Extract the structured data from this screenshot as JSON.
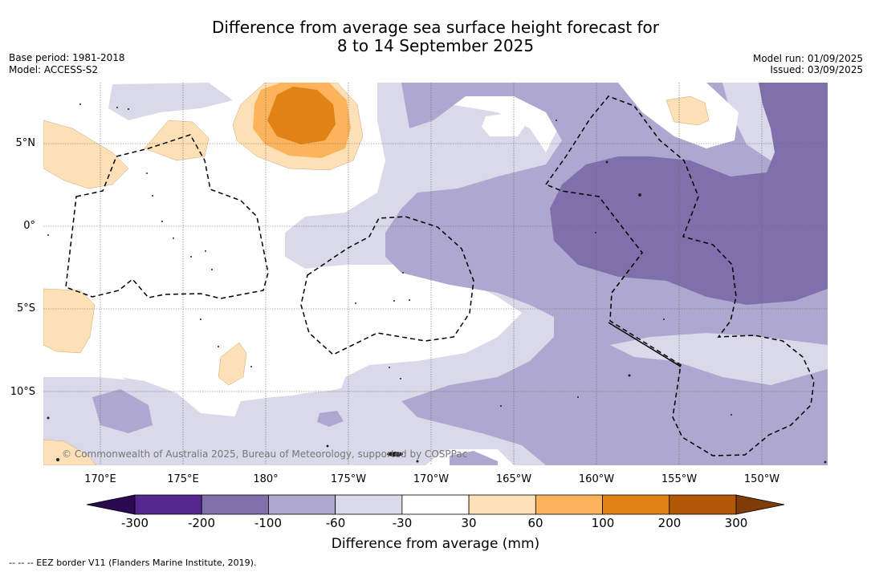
{
  "title": {
    "line1": "Difference from average sea surface height forecast for",
    "line2": "8 to 14 September 2025"
  },
  "meta_left": {
    "base_period": "Base period: 1981-2018",
    "model": "Model: ACCESS-S2"
  },
  "meta_right": {
    "model_run": "Model run: 01/09/2025",
    "issued": "Issued: 03/09/2025"
  },
  "map": {
    "lat_labels": [
      "5°N",
      "0°",
      "5°S",
      "10°S"
    ],
    "lon_labels": [
      "170°E",
      "175°E",
      "180°",
      "175°W",
      "170°W",
      "165°W",
      "160°W",
      "155°W",
      "150°W"
    ],
    "copyright": "© Commonwealth of Australia 2025, Bureau of Meteorology, supported by COSPPac"
  },
  "colorbar": {
    "ticks": [
      "-300",
      "-200",
      "-100",
      "-60",
      "-30",
      "30",
      "60",
      "100",
      "200",
      "300"
    ],
    "colors": [
      "#2b0a52",
      "#54278f",
      "#7f70ab",
      "#aea7cf",
      "#d9d9ea",
      "#ffffff",
      "#fde0b5",
      "#fbb45c",
      "#e08214",
      "#b35806",
      "#7f3b08"
    ],
    "label": "Difference from average (mm)"
  },
  "legend_note": "--  --  -- EEZ border V11 (Flanders Marine Institute, 2019)."
}
